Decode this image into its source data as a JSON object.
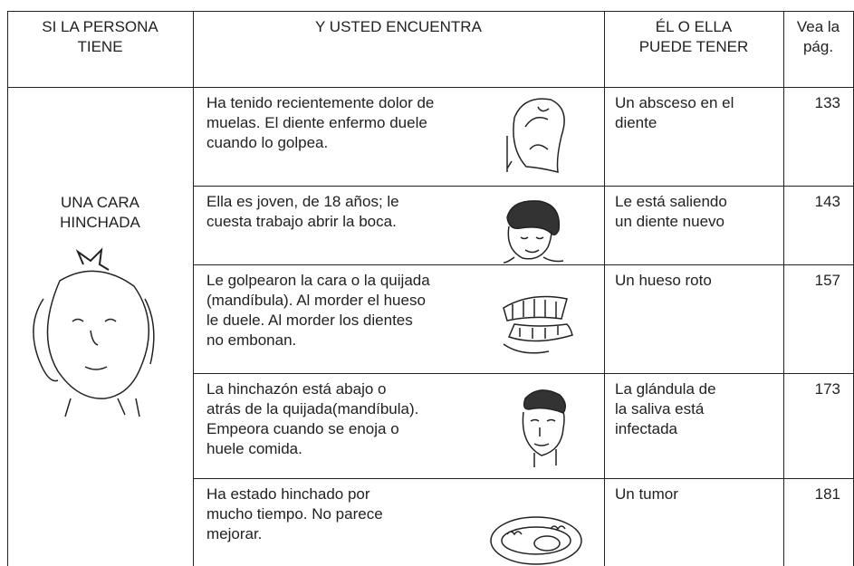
{
  "header": {
    "columns": [
      [
        "SI LA PERSONA",
        "TIENE"
      ],
      [
        "Y USTED ENCUENTRA"
      ],
      [
        "ÉL O ELLA",
        "PUEDE TENER"
      ],
      [
        "Vea la",
        "pág."
      ]
    ]
  },
  "condition": [
    "UNA CARA",
    "HINCHADA"
  ],
  "rows": [
    {
      "finding": [
        "Ha tenido recientemente dolor de",
        "muelas. El diente enfermo duele",
        "cuando lo golpea."
      ],
      "cause": [
        "Un absceso en el",
        "diente"
      ],
      "page": 133
    },
    {
      "finding": [
        "Ella es joven, de 18 años; le",
        "cuesta trabajo abrir la boca."
      ],
      "cause": [
        "Le está saliendo",
        "un diente nuevo"
      ],
      "page": 143
    },
    {
      "finding": [
        "Le golpearon la cara o la quijada",
        "(mandíbula). Al morder el hueso",
        "le duele. Al morder los dientes",
        "no embonan."
      ],
      "cause": [
        "Un hueso roto"
      ],
      "page": 157
    },
    {
      "finding": [
        "La hinchazón está abajo o",
        "atrás de la quijada(mandíbula).",
        "Empeora cuando se enoja o",
        "huele comida."
      ],
      "cause": [
        "La glándula de",
        "la saliva está",
        "infectada"
      ],
      "page": 173
    },
    {
      "finding": [
        "Ha estado hinchado por",
        "mucho tiempo. No parece",
        "mejorar."
      ],
      "cause": [
        "Un tumor"
      ],
      "page": 181
    }
  ]
}
